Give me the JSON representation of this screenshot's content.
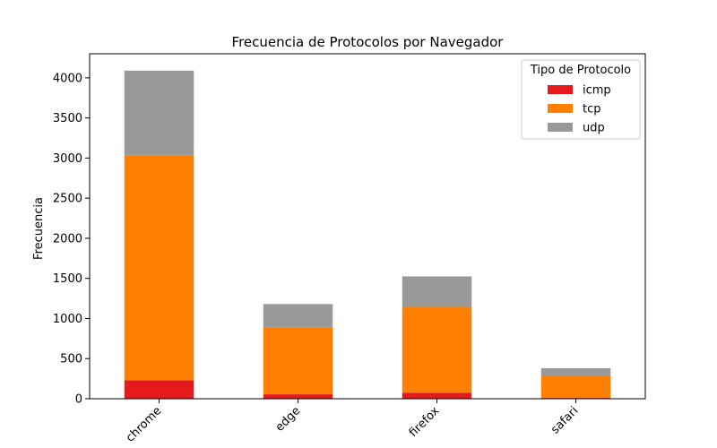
{
  "chart_data": {
    "type": "bar",
    "stacked": true,
    "title": "Frecuencia de Protocolos por Navegador",
    "xlabel": "",
    "ylabel": "Frecuencia",
    "categories": [
      "chrome",
      "edge",
      "firefox",
      "safari"
    ],
    "series": [
      {
        "name": "icmp",
        "color": "#e41a1c",
        "values": [
          230,
          55,
          75,
          10
        ]
      },
      {
        "name": "tcp",
        "color": "#ff7f00",
        "values": [
          2800,
          840,
          1070,
          280
        ]
      },
      {
        "name": "udp",
        "color": "#999999",
        "values": [
          1060,
          285,
          380,
          90
        ]
      }
    ],
    "ylim": [
      0,
      4300
    ],
    "yticks": [
      0,
      500,
      1000,
      1500,
      2000,
      2500,
      3000,
      3500,
      4000
    ],
    "grid": false,
    "legend": {
      "title": "Tipo de Protocolo",
      "placement": "top-right"
    }
  }
}
